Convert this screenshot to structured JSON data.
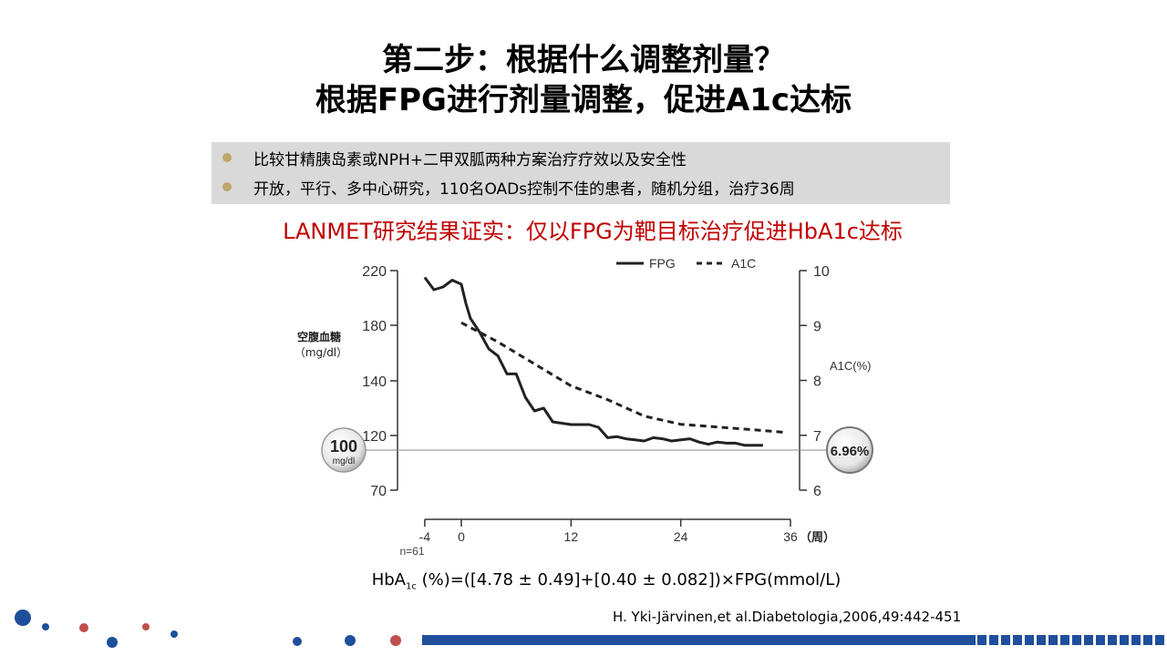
{
  "title_line1": "第二步：根据什么调整剂量？",
  "title_line2": "根据FPG进行剂量调整，促进A1c达标",
  "bullets": [
    "比较甘精胰岛素或NPH+二甲双胍两种方案治疗疗效以及安全性",
    "开放，平行、多中心研究，110名OADs控制不佳的患者，随机分组，治疗36周"
  ],
  "subtitle": "LANMET研究结果证实：仅以FPG为靶目标治疗促进HbA1c达标",
  "formula": {
    "prefix": "HbA",
    "sub": "1c",
    "rest": " (%)=([4.78 ± 0.49]+[0.40 ± 0.082])×FPG(mmol/L)"
  },
  "citation": "H. Yki-Järvinen,et al.Diabetologia,2006,49:442-451",
  "colors": {
    "title": "#000000",
    "subtitle": "#c00000",
    "bullet_box": "#d9d9d9",
    "bullet_dot": "#bfa76a",
    "line": "#222222",
    "dot_blue": "#1f4e9c",
    "dot_red": "#c0504d"
  },
  "chart_data": {
    "type": "line",
    "xlabel": "（周）",
    "x_ticks": [
      -4,
      0,
      12,
      24,
      36
    ],
    "xlim": [
      -4,
      36
    ],
    "x_note": "n=61",
    "y_left": {
      "label": "空腹血糖",
      "unit": "（mg/dl）",
      "ticks": [
        70,
        120,
        140,
        180,
        220
      ]
    },
    "y_right": {
      "label": "A1C(%)",
      "ticks": [
        6,
        7,
        8,
        9,
        10
      ]
    },
    "legend": [
      "FPG",
      "A1C"
    ],
    "legend_position": "top-right",
    "target_badges": [
      "100",
      "mg/dl",
      "6.96%"
    ],
    "series": [
      {
        "name": "FPG",
        "axis": "left",
        "style": "solid",
        "points": [
          [
            -4,
            215
          ],
          [
            -3,
            206
          ],
          [
            -2,
            208
          ],
          [
            -1,
            213
          ],
          [
            0,
            210
          ],
          [
            0.5,
            196
          ],
          [
            1,
            185
          ],
          [
            2,
            175
          ],
          [
            3,
            163
          ],
          [
            4,
            158
          ],
          [
            5,
            145
          ],
          [
            6,
            145
          ],
          [
            7,
            134
          ],
          [
            8,
            129
          ],
          [
            9,
            130
          ],
          [
            10,
            125
          ],
          [
            12,
            124
          ],
          [
            14,
            124
          ],
          [
            15,
            123
          ],
          [
            16,
            118
          ],
          [
            17,
            119
          ],
          [
            18,
            117
          ],
          [
            19,
            116
          ],
          [
            20,
            115
          ],
          [
            21,
            118
          ],
          [
            22,
            117
          ],
          [
            23,
            115
          ],
          [
            24,
            116
          ],
          [
            25,
            117
          ],
          [
            26,
            114
          ],
          [
            27,
            112
          ],
          [
            28,
            114
          ],
          [
            29,
            113
          ],
          [
            30,
            113
          ],
          [
            31,
            111
          ],
          [
            32,
            111
          ],
          [
            33,
            111
          ]
        ]
      },
      {
        "name": "A1C",
        "axis": "right",
        "style": "dashed",
        "points": [
          [
            0,
            9.05
          ],
          [
            4,
            8.7
          ],
          [
            8,
            8.3
          ],
          [
            12,
            7.9
          ],
          [
            16,
            7.65
          ],
          [
            20,
            7.35
          ],
          [
            24,
            7.2
          ],
          [
            28,
            7.15
          ],
          [
            32,
            7.1
          ],
          [
            35.5,
            7.05
          ]
        ]
      }
    ]
  }
}
